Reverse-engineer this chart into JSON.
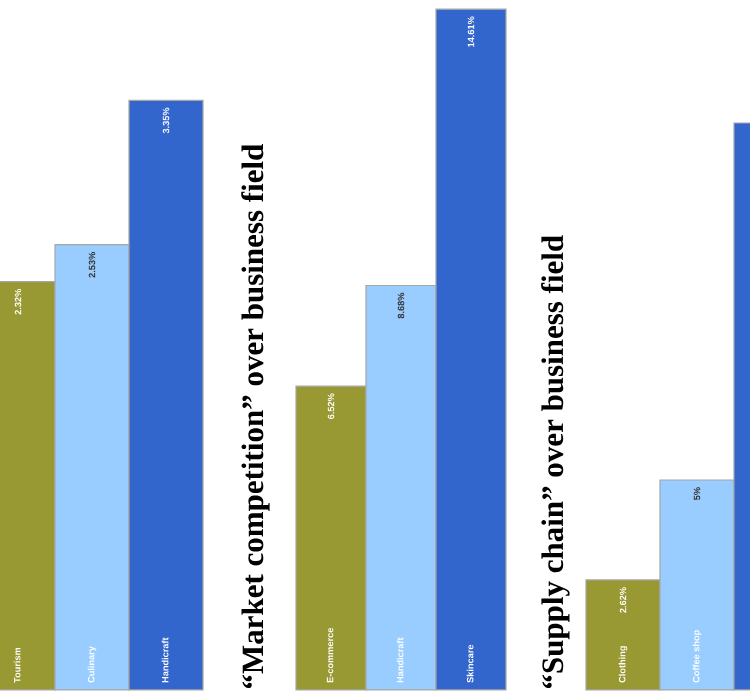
{
  "chart_data": [
    {
      "type": "bar",
      "categories": [
        "Tourism",
        "Culinary",
        "Handicraft"
      ],
      "values": [
        2.32,
        2.53,
        3.35
      ],
      "colors": [
        "#999933",
        "#99ccff",
        "#3366cc"
      ],
      "value_labels": [
        "2.32%",
        "2.53%",
        "3.35%"
      ]
    },
    {
      "type": "bar",
      "title": "“Market competition” over business field",
      "categories": [
        "E-commerce",
        "Handicraft",
        "Skincare"
      ],
      "values": [
        6.52,
        8.68,
        14.61
      ],
      "colors": [
        "#999933",
        "#99ccff",
        "#3366cc"
      ],
      "value_labels": [
        "6.52%",
        "8.68%",
        "14.61%"
      ]
    },
    {
      "type": "bar",
      "title": "“Supply chain” over business field",
      "categories": [
        "Clothing",
        "Coffee shop",
        null
      ],
      "values": [
        2.62,
        5,
        13.5
      ],
      "colors": [
        "#999933",
        "#99ccff",
        "#3366cc"
      ],
      "value_labels": [
        "2.62%",
        "5%",
        null
      ]
    }
  ]
}
